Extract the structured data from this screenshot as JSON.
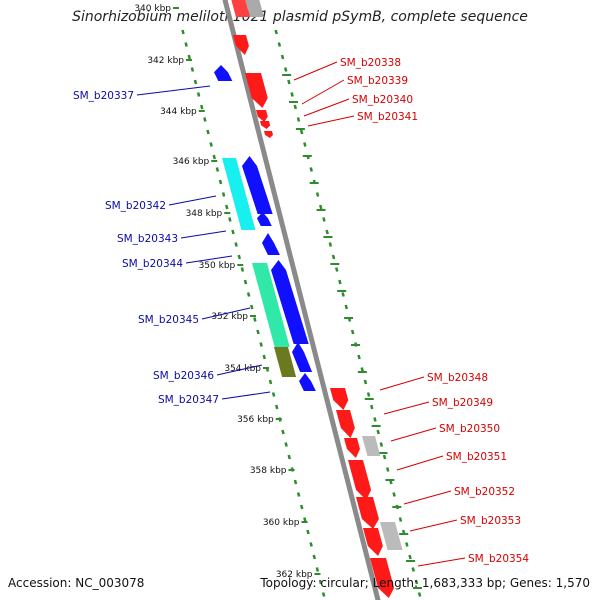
{
  "title": "Sinorhizobium meliloti 1021 plasmid pSymB, complete sequence",
  "footer": {
    "accession": "Accession: NC_003078",
    "summary": "Topology: circular; Length: 1,683,333 bp; Genes: 1,570"
  },
  "colors": {
    "backbone": "#8a8a8a",
    "tick": "#2e8b2e",
    "forward_gene": "#1010ff",
    "reverse_gene": "#ff1a1a",
    "forward_label": "#0a0aa8",
    "reverse_label": "#d60000"
  },
  "scale_labels": [
    "340 kbp",
    "342 kbp",
    "344 kbp",
    "346 kbp",
    "348 kbp",
    "350 kbp",
    "352 kbp",
    "354 kbp",
    "356 kbp",
    "358 kbp",
    "360 kbp",
    "362 kbp"
  ],
  "forward_labels": [
    "SM_b20337",
    "SM_b20342",
    "SM_b20343",
    "SM_b20344",
    "SM_b20345",
    "SM_b20346",
    "SM_b20347"
  ],
  "reverse_labels": [
    "SM_b20338",
    "SM_b20339",
    "SM_b20340",
    "SM_b20341",
    "SM_b20348",
    "SM_b20349",
    "SM_b20350",
    "SM_b20351",
    "SM_b20352",
    "SM_b20353",
    "SM_b20354"
  ]
}
